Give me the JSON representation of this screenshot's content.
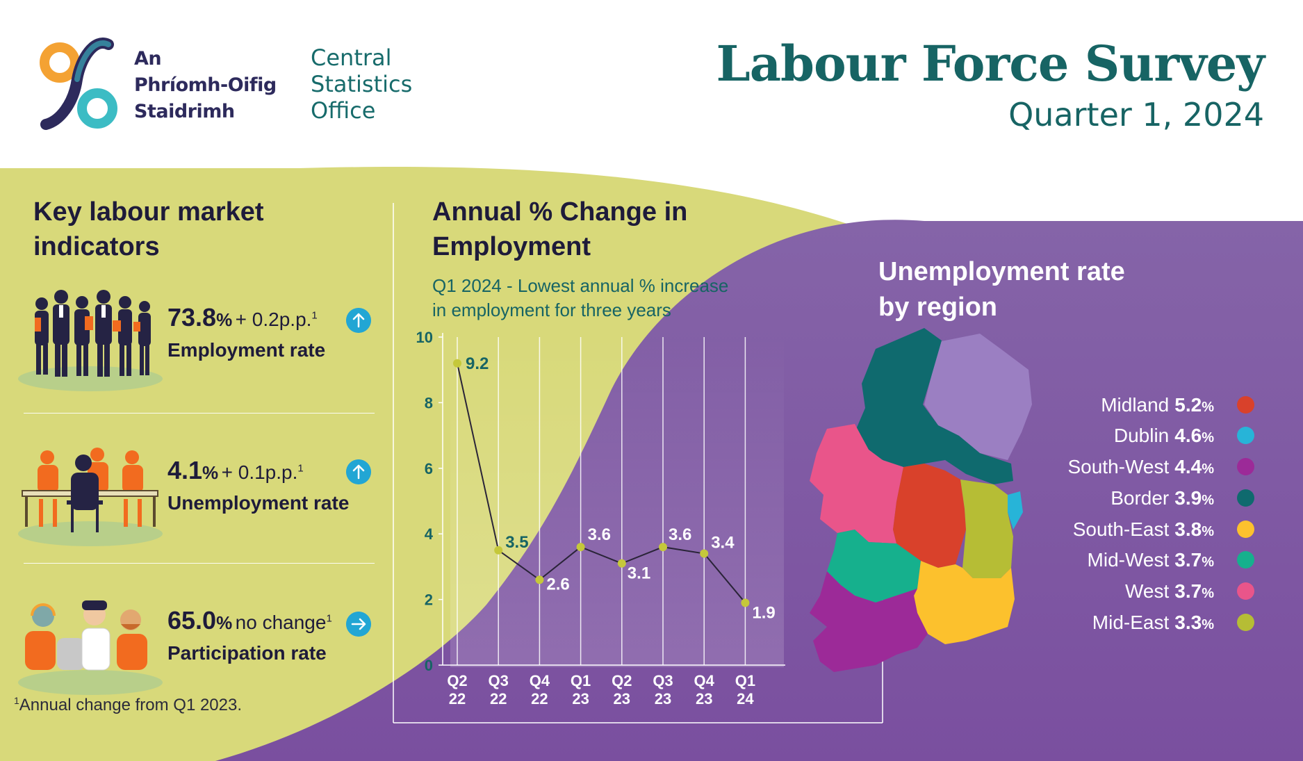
{
  "header": {
    "logo_irish": [
      "An",
      "Phríomh-Oifig",
      "Staidrimh"
    ],
    "logo_english": [
      "Central",
      "Statistics",
      "Office"
    ],
    "title": "Labour Force Survey",
    "subtitle": "Quarter 1, 2024"
  },
  "indicators": {
    "heading": [
      "Key labour market",
      "indicators"
    ],
    "items": [
      {
        "value": "73.8",
        "unit": "%",
        "change": "+ 0.2p.p.",
        "marker": "1",
        "label": "Employment rate",
        "direction": "up",
        "icon": "business-people-icon"
      },
      {
        "value": "4.1",
        "unit": "%",
        "change": "+ 0.1p.p.",
        "marker": "1",
        "label": "Unemployment rate",
        "direction": "up",
        "icon": "job-interview-icon"
      },
      {
        "value": "65.0",
        "unit": "%",
        "change": "no change",
        "marker": "1",
        "label": "Participation rate",
        "direction": "right",
        "icon": "group-people-icon"
      }
    ],
    "footnote_marker": "1",
    "footnote": "Annual change from Q1 2023."
  },
  "chart_data": {
    "type": "line",
    "title": "Annual % Change in Employment",
    "subtitle": "Q1 2024 - Lowest annual % increase in employment for three years",
    "categories": [
      [
        "Q2",
        "22"
      ],
      [
        "Q3",
        "22"
      ],
      [
        "Q4",
        "22"
      ],
      [
        "Q1",
        "23"
      ],
      [
        "Q2",
        "23"
      ],
      [
        "Q3",
        "23"
      ],
      [
        "Q4",
        "23"
      ],
      [
        "Q1",
        "24"
      ]
    ],
    "values": [
      9.2,
      3.5,
      2.6,
      3.6,
      3.1,
      3.6,
      3.4,
      1.9
    ],
    "data_labels": [
      "9.2",
      "3.5",
      "2.6",
      "3.6",
      "3.1",
      "3.6",
      "3.4",
      "1.9"
    ],
    "ylim": [
      0,
      10
    ],
    "yticks": [
      "0",
      "2",
      "4",
      "6",
      "8",
      "10"
    ],
    "grid": "vertical",
    "line_color": "#2a2438",
    "marker_color": "#c5c83a"
  },
  "map": {
    "title": [
      "Unemployment rate",
      "by region"
    ],
    "regions": [
      {
        "name": "Midland",
        "value": "5.2",
        "unit": "%",
        "color": "#d9412b"
      },
      {
        "name": "Dublin",
        "value": "4.6",
        "unit": "%",
        "color": "#27b4d8"
      },
      {
        "name": "South-West",
        "value": "4.4",
        "unit": "%",
        "color": "#9c2a98"
      },
      {
        "name": "Border",
        "value": "3.9",
        "unit": "%",
        "color": "#0f6a6e"
      },
      {
        "name": "South-East",
        "value": "3.8",
        "unit": "%",
        "color": "#fcc12d"
      },
      {
        "name": "Mid-West",
        "value": "3.7",
        "unit": "%",
        "color": "#16b08d"
      },
      {
        "name": "West",
        "value": "3.7",
        "unit": "%",
        "color": "#e9558a"
      },
      {
        "name": "Mid-East",
        "value": "3.3",
        "unit": "%",
        "color": "#b6bd35"
      }
    ]
  },
  "colors": {
    "olive": "#d8d97a",
    "purple": "#8564a8",
    "teal": "#176464",
    "navy": "#1e1b3a"
  }
}
